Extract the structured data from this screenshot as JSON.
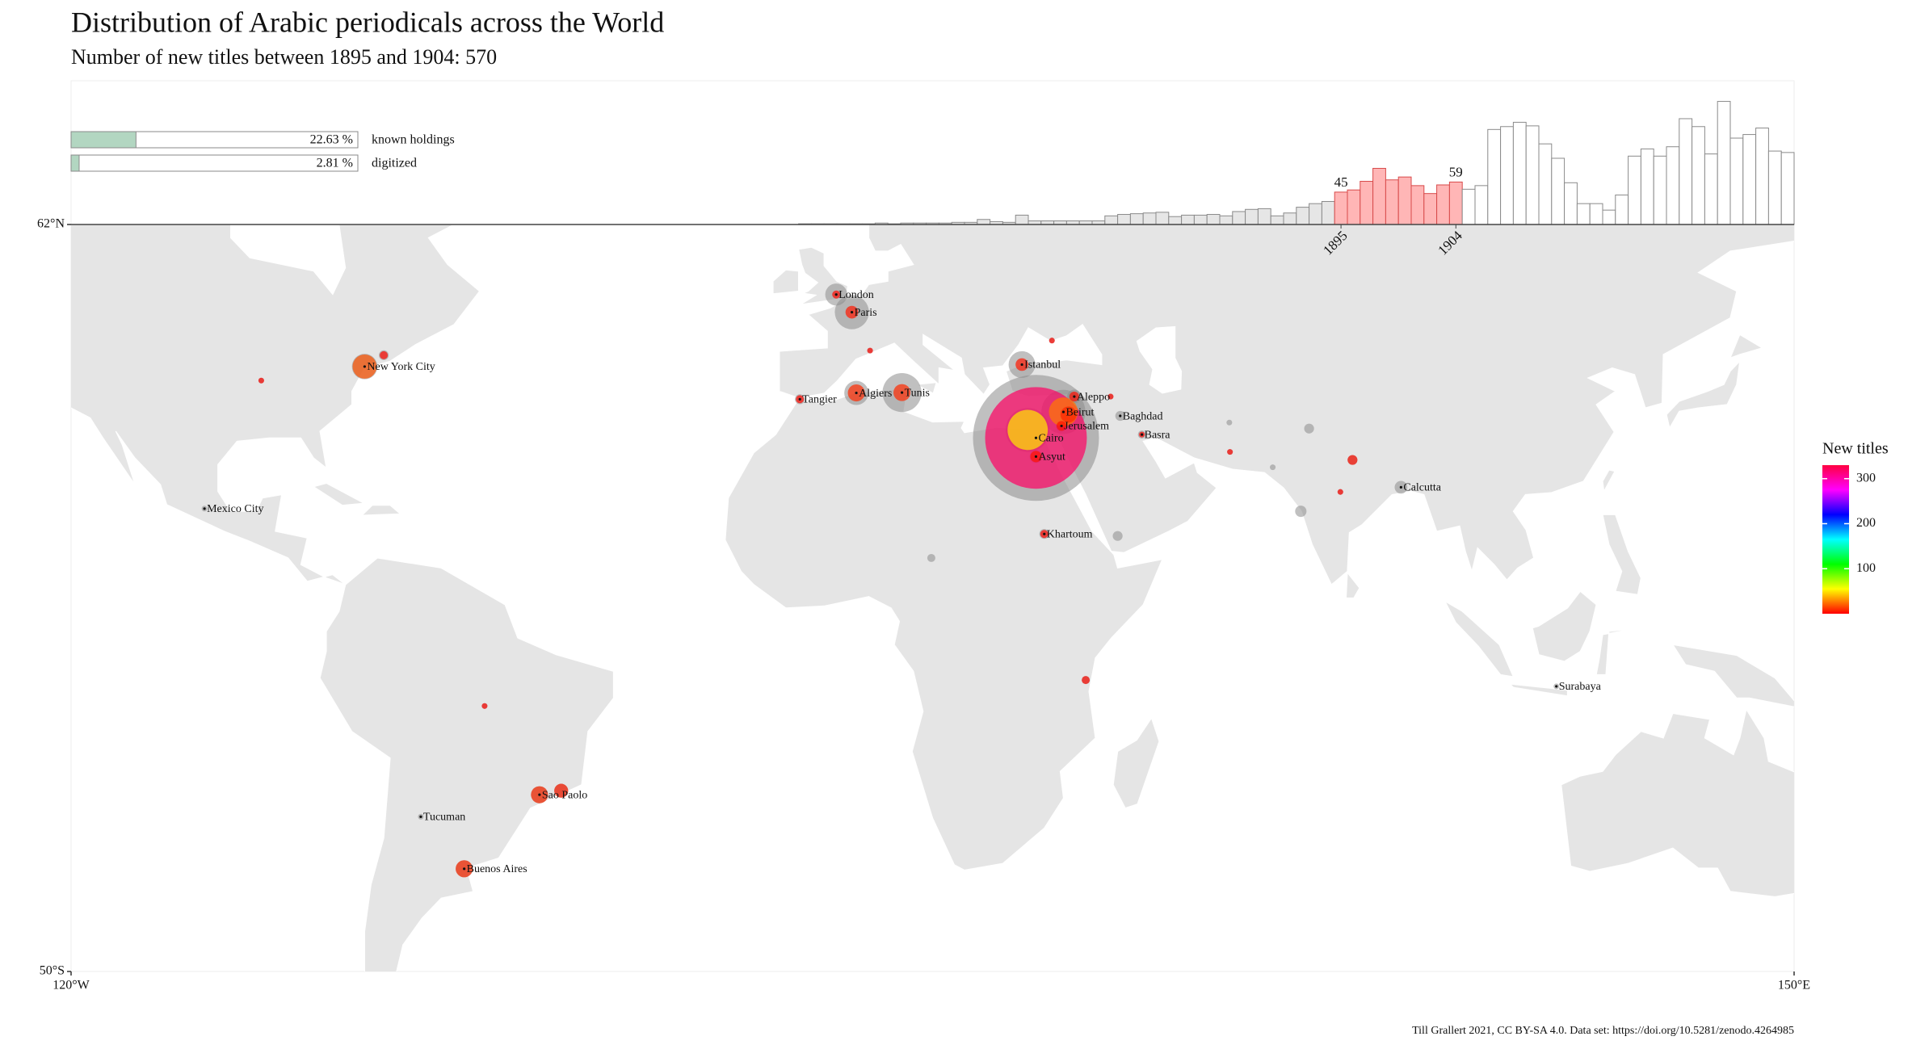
{
  "title": "Distribution of Arabic periodicals across the World",
  "subtitle": "Number of new titles between 1895 and 1904: 570",
  "caption": "Till Grallert 2021, CC BY-SA 4.0. Data set: https://doi.org/10.5281/zenodo.4264985",
  "chart_data": [
    {
      "type": "map",
      "xlim": [
        -120,
        150
      ],
      "ylim": [
        -50,
        62
      ],
      "xticks": [
        {
          "value": -120,
          "label": "120°W"
        },
        {
          "value": 150,
          "label": "150°E"
        }
      ],
      "yticks": [
        {
          "value": -50,
          "label": "50°S"
        },
        {
          "value": 62,
          "label": "62°N"
        }
      ],
      "legend_title": "New titles",
      "colorlim": [
        0,
        330
      ],
      "colorticks": [
        100,
        200,
        300
      ],
      "colors": [
        "#ff0000",
        "#ffff00",
        "#00ff00",
        "#00ffff",
        "#0000ff",
        "#ff00ff",
        "#ff0040"
      ],
      "points": [
        {
          "name": "Cairo",
          "lon": 31.2,
          "lat": 30.0,
          "total": 491,
          "new": 320
        },
        {
          "name": null,
          "lon": 29.9,
          "lat": 31.2,
          "total": 60,
          "new": 50
        },
        {
          "name": "Beirut",
          "lon": 35.5,
          "lat": 33.9,
          "total": 60,
          "new": 26
        },
        {
          "name": null,
          "lon": 36.3,
          "lat": 33.5,
          "total": 10,
          "new": 8
        },
        {
          "name": "Aleppo",
          "lon": 37.2,
          "lat": 36.2,
          "total": 6,
          "new": 3
        },
        {
          "name": "Jerusalem",
          "lon": 35.2,
          "lat": 31.8,
          "total": 4,
          "new": 3
        },
        {
          "name": "Asyut",
          "lon": 31.2,
          "lat": 27.2,
          "total": 5,
          "new": 4
        },
        {
          "name": "Istanbul",
          "lon": 29.0,
          "lat": 41.0,
          "total": 22,
          "new": 5
        },
        {
          "name": "London",
          "lon": -0.1,
          "lat": 51.5,
          "total": 15,
          "new": 2
        },
        {
          "name": "Paris",
          "lon": 2.35,
          "lat": 48.85,
          "total": 36,
          "new": 5
        },
        {
          "name": "New York City",
          "lon": -74.0,
          "lat": 40.7,
          "total": 20,
          "new": 18
        },
        {
          "name": null,
          "lon": -71.0,
          "lat": 42.4,
          "total": 3,
          "new": 2
        },
        {
          "name": null,
          "lon": -90.2,
          "lat": 38.6,
          "total": 1,
          "new": 1
        },
        {
          "name": "Mexico City",
          "lon": -99.1,
          "lat": 19.4,
          "total": 1,
          "new": 0
        },
        {
          "name": "Tangier",
          "lon": -5.8,
          "lat": 35.8,
          "total": 3,
          "new": 2
        },
        {
          "name": "Algiers",
          "lon": 3.05,
          "lat": 36.75,
          "total": 18,
          "new": 9
        },
        {
          "name": "Tunis",
          "lon": 10.2,
          "lat": 36.8,
          "total": 47,
          "new": 9
        },
        {
          "name": "Baghdad",
          "lon": 44.4,
          "lat": 33.3,
          "total": 3,
          "new": 0
        },
        {
          "name": "Basra",
          "lon": 47.8,
          "lat": 30.5,
          "total": 2,
          "new": 1
        },
        {
          "name": "Khartoum",
          "lon": 32.5,
          "lat": 15.6,
          "total": 3,
          "new": 2
        },
        {
          "name": "Calcutta",
          "lon": 88.4,
          "lat": 22.6,
          "total": 5,
          "new": 0
        },
        {
          "name": "Surabaya",
          "lon": 112.75,
          "lat": -7.25,
          "total": 1,
          "new": 0
        },
        {
          "name": "Sao Paolo",
          "lon": -46.6,
          "lat": -23.5,
          "total": 9,
          "new": 9
        },
        {
          "name": null,
          "lon": -43.2,
          "lat": -22.9,
          "total": 6,
          "new": 6
        },
        {
          "name": "Tucuman",
          "lon": -65.2,
          "lat": -26.8,
          "total": 1,
          "new": 0
        },
        {
          "name": "Buenos Aires",
          "lon": -58.4,
          "lat": -34.6,
          "total": 9,
          "new": 9
        },
        {
          "name": null,
          "lon": -55.2,
          "lat": -10.2,
          "total": 1,
          "new": 1
        },
        {
          "name": null,
          "lon": 5.2,
          "lat": 43.1,
          "total": 1,
          "new": 1
        },
        {
          "name": null,
          "lon": 33.7,
          "lat": 44.6,
          "total": 1,
          "new": 1
        },
        {
          "name": null,
          "lon": 14.8,
          "lat": 12.0,
          "total": 2,
          "new": 0
        },
        {
          "name": null,
          "lon": 44.0,
          "lat": 15.3,
          "total": 3,
          "new": 0
        },
        {
          "name": null,
          "lon": 39.0,
          "lat": -6.3,
          "total": 2,
          "new": 2
        },
        {
          "name": null,
          "lon": 80.8,
          "lat": 26.7,
          "total": 3,
          "new": 3
        },
        {
          "name": null,
          "lon": 78.9,
          "lat": 21.9,
          "total": 1,
          "new": 1
        },
        {
          "name": null,
          "lon": 74.0,
          "lat": 31.4,
          "total": 3,
          "new": 0
        },
        {
          "name": null,
          "lon": 72.7,
          "lat": 19.0,
          "total": 4,
          "new": 0
        },
        {
          "name": null,
          "lon": 61.6,
          "lat": 27.9,
          "total": 1,
          "new": 1
        },
        {
          "name": null,
          "lon": 61.5,
          "lat": 32.3,
          "total": 1,
          "new": 0
        },
        {
          "name": null,
          "lon": 68.3,
          "lat": 25.6,
          "total": 1,
          "new": 0
        },
        {
          "name": null,
          "lon": 42.9,
          "lat": 36.2,
          "total": 1,
          "new": 1
        }
      ]
    },
    {
      "type": "histogram",
      "bins": [
        1850,
        1851,
        1852,
        1853,
        1854,
        1855,
        1856,
        1857,
        1858,
        1859,
        1860,
        1861,
        1862,
        1863,
        1864,
        1865,
        1866,
        1867,
        1868,
        1869,
        1870,
        1871,
        1872,
        1873,
        1874,
        1875,
        1876,
        1877,
        1878,
        1879,
        1880,
        1881,
        1882,
        1883,
        1884,
        1885,
        1886,
        1887,
        1888,
        1889,
        1890,
        1891,
        1892,
        1893,
        1894,
        1895,
        1896,
        1897,
        1898,
        1899,
        1900,
        1901,
        1902,
        1903,
        1904,
        1905,
        1906,
        1907,
        1908,
        1909,
        1910,
        1911,
        1912,
        1913,
        1914,
        1915,
        1916,
        1917,
        1918,
        1919,
        1920,
        1921,
        1922,
        1923,
        1924,
        1925,
        1926,
        1927,
        1928,
        1929,
        1930,
        1931
      ],
      "values": [
        0,
        0,
        0,
        1,
        1,
        1,
        1,
        1,
        1,
        2,
        1,
        2,
        2,
        2,
        2,
        3,
        3,
        7,
        4,
        3,
        13,
        5,
        5,
        5,
        5,
        5,
        5,
        12,
        14,
        15,
        16,
        17,
        11,
        13,
        13,
        14,
        12,
        18,
        21,
        22,
        12,
        16,
        24,
        29,
        32,
        45,
        48,
        60,
        78,
        62,
        66,
        54,
        43,
        55,
        59,
        49,
        54,
        132,
        136,
        142,
        137,
        112,
        92,
        58,
        29,
        29,
        20,
        41,
        95,
        105,
        95,
        108,
        147,
        136,
        98,
        171,
        120,
        125,
        134,
        102,
        100
      ],
      "xlim": [
        1796,
        1931
      ],
      "ylim": [
        0,
        175
      ],
      "xticks": [
        1895,
        1904
      ]
    },
    {
      "type": "bar",
      "categories": [
        "known holdings",
        "digitized"
      ],
      "values": [
        22.63,
        2.81
      ],
      "value_labels": [
        "22.63 %",
        "2.81 %"
      ],
      "xlim": [
        0,
        100
      ],
      "color": "#b2d6c1"
    }
  ]
}
